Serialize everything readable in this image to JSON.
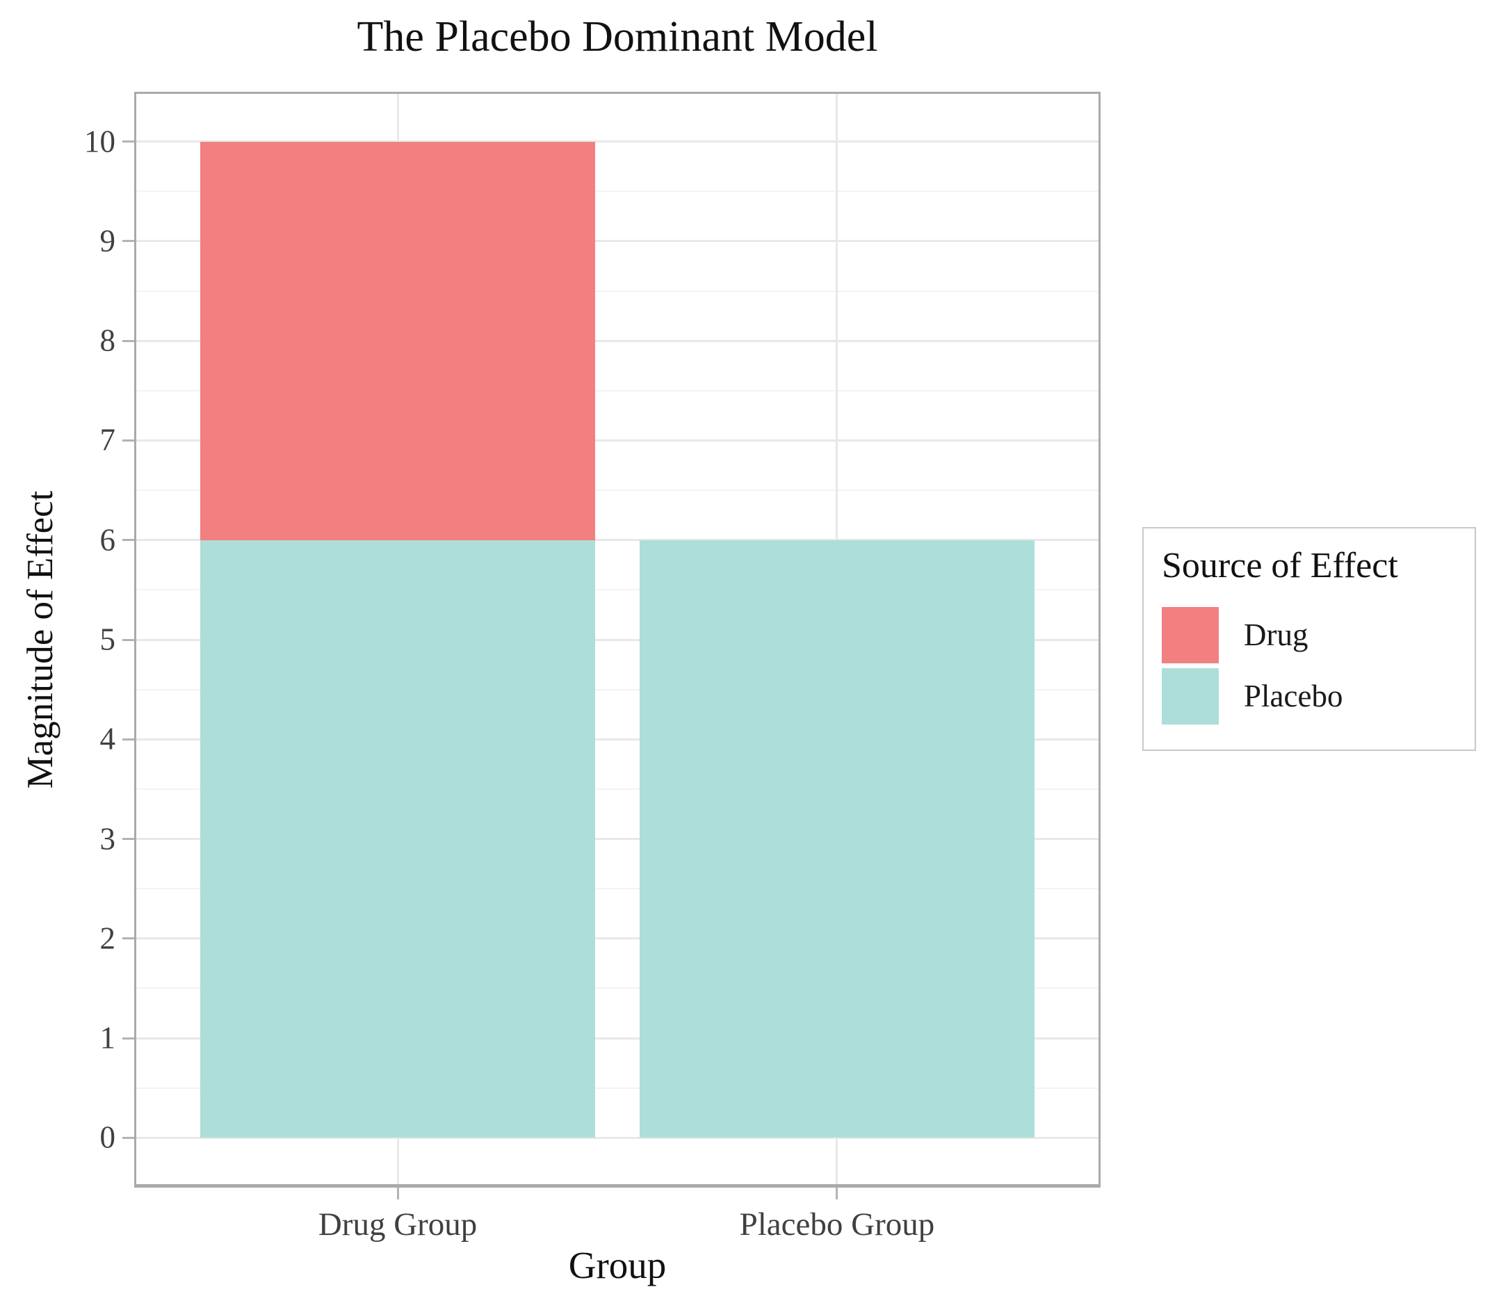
{
  "chart_data": {
    "type": "bar",
    "stacked": true,
    "title": "The Placebo Dominant Model",
    "xlabel": "Group",
    "ylabel": "Magnitude of Effect",
    "categories": [
      "Drug Group",
      "Placebo Group"
    ],
    "series": [
      {
        "name": "Drug",
        "color": "#F28081",
        "values": [
          4,
          0
        ]
      },
      {
        "name": "Placebo",
        "color": "#AEDED9",
        "values": [
          6,
          6
        ]
      }
    ],
    "bar_totals": [
      10,
      6
    ],
    "ylim": [
      0,
      10
    ],
    "yticks": [
      0,
      1,
      2,
      3,
      4,
      5,
      6,
      7,
      8,
      9,
      10
    ],
    "grid": {
      "major": true,
      "minor": true
    },
    "legend": {
      "title": "Source of Effect",
      "position": "right"
    }
  }
}
